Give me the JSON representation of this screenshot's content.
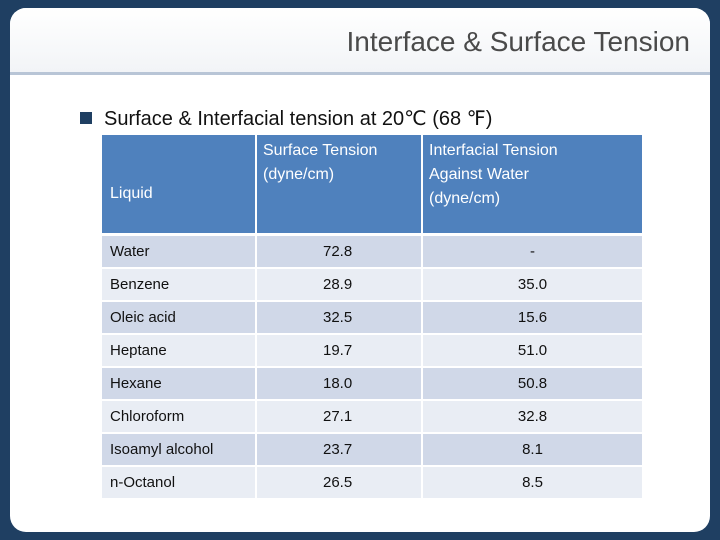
{
  "slide": {
    "title": "Interface & Surface Tension",
    "bullet": "Surface & Interfacial tension at 20℃ (68 ℉)"
  },
  "table": {
    "headers": {
      "liquid": "Liquid",
      "surface_line1": "Surface Tension",
      "surface_line2": "(dyne/cm)",
      "inter_line1": "Interfacial Tension",
      "inter_line2": "Against Water",
      "inter_line3": "(dyne/cm)"
    },
    "rows": [
      {
        "liquid": "Water",
        "surface": "72.8",
        "interfacial": "-"
      },
      {
        "liquid": "Benzene",
        "surface": "28.9",
        "interfacial": "35.0"
      },
      {
        "liquid": "Oleic acid",
        "surface": "32.5",
        "interfacial": "15.6"
      },
      {
        "liquid": "Heptane",
        "surface": "19.7",
        "interfacial": "51.0"
      },
      {
        "liquid": "Hexane",
        "surface": "18.0",
        "interfacial": "50.8"
      },
      {
        "liquid": "Chloroform",
        "surface": "27.1",
        "interfacial": "32.8"
      },
      {
        "liquid": "Isoamyl alcohol",
        "surface": "23.7",
        "interfacial": "8.1"
      },
      {
        "liquid": "n-Octanol",
        "surface": "26.5",
        "interfacial": "8.5"
      }
    ]
  }
}
